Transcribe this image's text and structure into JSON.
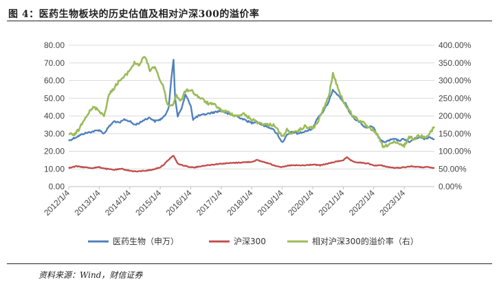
{
  "title": "图 4：医药生物板块的历史估值及相对沪深300的溢价率",
  "source": "资料来源：Wind，财信证券",
  "colors": {
    "pe": "#4f81bd",
    "hs300": "#c0504d",
    "premium": "#9bbb59",
    "grid": "#d9d9d9"
  },
  "chart_data": {
    "type": "line",
    "title": "",
    "xlabel": "",
    "ylabel": "",
    "ylim": [
      0,
      80
    ],
    "y2lim": [
      0,
      400
    ],
    "yticks": [
      "0.00",
      "10.00",
      "20.00",
      "30.00",
      "40.00",
      "50.00",
      "60.00",
      "70.00",
      "80.00"
    ],
    "y2ticks": [
      "0.00%",
      "50.00%",
      "100.00%",
      "150.00%",
      "200.00%",
      "250.00%",
      "300.00%",
      "350.00%",
      "400.00%"
    ],
    "xticks": [
      "2012/1/4",
      "2013/1/4",
      "2014/1/4",
      "2015/1/4",
      "2016/1/4",
      "2017/1/4",
      "2018/1/4",
      "2019/1/4",
      "2020/1/4",
      "2021/1/4",
      "2022/1/4",
      "2023/1/4"
    ],
    "x_range": [
      "2012/1/4",
      "2023/12/31"
    ],
    "grid": true,
    "legend_position": "bottom",
    "series": [
      {
        "name": "医药生物（申万）",
        "axis": "left",
        "x": [
          "2012/1/4",
          "2012/4/1",
          "2012/7/1",
          "2012/10/1",
          "2013/1/4",
          "2013/3/1",
          "2013/5/1",
          "2013/7/1",
          "2013/9/1",
          "2013/11/1",
          "2014/1/4",
          "2014/3/1",
          "2014/5/1",
          "2014/7/1",
          "2014/9/1",
          "2014/11/1",
          "2015/1/4",
          "2015/3/1",
          "2015/4/15",
          "2015/5/15",
          "2015/6/12",
          "2015/7/1",
          "2015/8/1",
          "2015/9/15",
          "2015/11/1",
          "2016/1/4",
          "2016/2/1",
          "2016/4/1",
          "2016/7/1",
          "2016/10/1",
          "2017/1/4",
          "2017/4/1",
          "2017/7/1",
          "2017/10/1",
          "2018/1/4",
          "2018/3/1",
          "2018/5/1",
          "2018/7/1",
          "2018/9/1",
          "2018/11/1",
          "2019/1/4",
          "2019/3/1",
          "2019/5/1",
          "2019/7/1",
          "2019/10/1",
          "2020/1/4",
          "2020/3/1",
          "2020/5/1",
          "2020/7/15",
          "2020/9/1",
          "2020/11/1",
          "2021/1/4",
          "2021/2/1",
          "2021/4/1",
          "2021/6/1",
          "2021/8/1",
          "2021/10/1",
          "2021/12/1",
          "2022/1/4",
          "2022/3/1",
          "2022/4/27",
          "2022/7/1",
          "2022/9/1",
          "2022/11/1",
          "2023/1/4",
          "2023/3/1",
          "2023/5/1",
          "2023/7/1",
          "2023/9/1",
          "2023/11/1",
          "2023/12/31"
        ],
        "values": [
          26,
          28,
          30,
          31,
          32,
          30,
          34,
          37,
          36,
          38,
          37,
          35,
          36,
          38,
          39,
          37,
          38,
          40,
          45,
          60,
          72,
          50,
          40,
          44,
          52,
          46,
          38,
          40,
          41,
          42,
          43,
          41,
          40,
          38,
          36,
          37,
          35,
          34,
          33,
          30,
          25,
          29,
          31,
          30,
          31,
          33,
          39,
          42,
          48,
          55,
          52,
          48,
          47,
          41,
          38,
          36,
          33,
          34,
          33,
          28,
          25,
          26,
          27,
          26,
          27,
          25,
          27,
          28,
          27,
          28,
          27
        ]
      },
      {
        "name": "沪深300",
        "axis": "left",
        "x": [
          "2012/1/4",
          "2012/4/1",
          "2012/7/1",
          "2012/10/1",
          "2013/1/4",
          "2013/4/1",
          "2013/7/1",
          "2013/10/1",
          "2014/1/4",
          "2014/4/1",
          "2014/7/1",
          "2014/10/1",
          "2015/1/4",
          "2015/3/1",
          "2015/5/1",
          "2015/6/12",
          "2015/8/1",
          "2015/10/1",
          "2016/1/4",
          "2016/3/1",
          "2016/7/1",
          "2016/10/1",
          "2017/1/4",
          "2017/7/1",
          "2018/1/4",
          "2018/3/1",
          "2018/7/1",
          "2018/10/1",
          "2019/1/4",
          "2019/4/1",
          "2019/7/1",
          "2019/10/1",
          "2020/1/4",
          "2020/4/1",
          "2020/7/1",
          "2020/10/1",
          "2021/1/4",
          "2021/2/15",
          "2021/5/1",
          "2021/8/1",
          "2021/11/1",
          "2022/1/4",
          "2022/4/1",
          "2022/7/1",
          "2022/10/1",
          "2023/1/4",
          "2023/4/1",
          "2023/7/1",
          "2023/10/1",
          "2023/12/31"
        ],
        "values": [
          10.5,
          11.5,
          11,
          10.5,
          11,
          10,
          9.5,
          10,
          9,
          8.5,
          9,
          9.5,
          11,
          13,
          16,
          17.5,
          13,
          12,
          11,
          11,
          12,
          12.5,
          13,
          13.5,
          14,
          15,
          13.5,
          12,
          11,
          12,
          12,
          12,
          12.5,
          12,
          13,
          14,
          15,
          16.5,
          14,
          13.5,
          13,
          12,
          12,
          11,
          10.5,
          11,
          11.5,
          11,
          11,
          10.5
        ]
      },
      {
        "name": "相对沪深300的溢价率（右）",
        "axis": "right",
        "x": [
          "2012/1/4",
          "2012/3/1",
          "2012/5/1",
          "2012/7/1",
          "2012/9/1",
          "2012/11/1",
          "2013/1/4",
          "2013/3/1",
          "2013/5/1",
          "2013/7/1",
          "2013/9/1",
          "2013/11/1",
          "2014/1/4",
          "2014/3/1",
          "2014/5/1",
          "2014/7/1",
          "2014/9/1",
          "2014/11/1",
          "2015/1/4",
          "2015/2/15",
          "2015/4/1",
          "2015/6/1",
          "2015/7/15",
          "2015/9/1",
          "2015/11/1",
          "2016/1/4",
          "2016/3/1",
          "2016/5/1",
          "2016/8/1",
          "2016/11/1",
          "2017/1/4",
          "2017/4/1",
          "2017/7/1",
          "2017/10/1",
          "2018/1/4",
          "2018/4/1",
          "2018/7/1",
          "2018/10/1",
          "2019/1/4",
          "2019/3/1",
          "2019/5/1",
          "2019/7/1",
          "2019/10/1",
          "2020/1/4",
          "2020/3/1",
          "2020/5/1",
          "2020/7/15",
          "2020/9/1",
          "2020/11/1",
          "2021/1/4",
          "2021/3/1",
          "2021/5/1",
          "2021/7/1",
          "2021/9/1",
          "2021/11/1",
          "2022/1/4",
          "2022/3/1",
          "2022/5/1",
          "2022/7/1",
          "2022/9/1",
          "2022/11/1",
          "2023/1/4",
          "2023/3/1",
          "2023/5/1",
          "2023/7/1",
          "2023/9/1",
          "2023/11/1",
          "2023/12/31"
        ],
        "values": [
          150,
          145,
          160,
          190,
          210,
          225,
          215,
          200,
          260,
          280,
          300,
          310,
          330,
          350,
          345,
          370,
          330,
          340,
          300,
          280,
          230,
          230,
          260,
          240,
          270,
          275,
          260,
          250,
          235,
          230,
          215,
          210,
          200,
          205,
          190,
          180,
          175,
          175,
          140,
          160,
          150,
          155,
          170,
          165,
          180,
          215,
          255,
          320,
          280,
          240,
          220,
          200,
          190,
          180,
          165,
          160,
          140,
          110,
          120,
          125,
          120,
          115,
          140,
          135,
          145,
          140,
          150,
          170
        ]
      }
    ]
  },
  "legend": [
    {
      "label": "医药生物（申万）",
      "color": "#4f81bd"
    },
    {
      "label": "沪深300",
      "color": "#c0504d"
    },
    {
      "label": "相对沪深300的溢价率（右）",
      "color": "#9bbb59"
    }
  ]
}
